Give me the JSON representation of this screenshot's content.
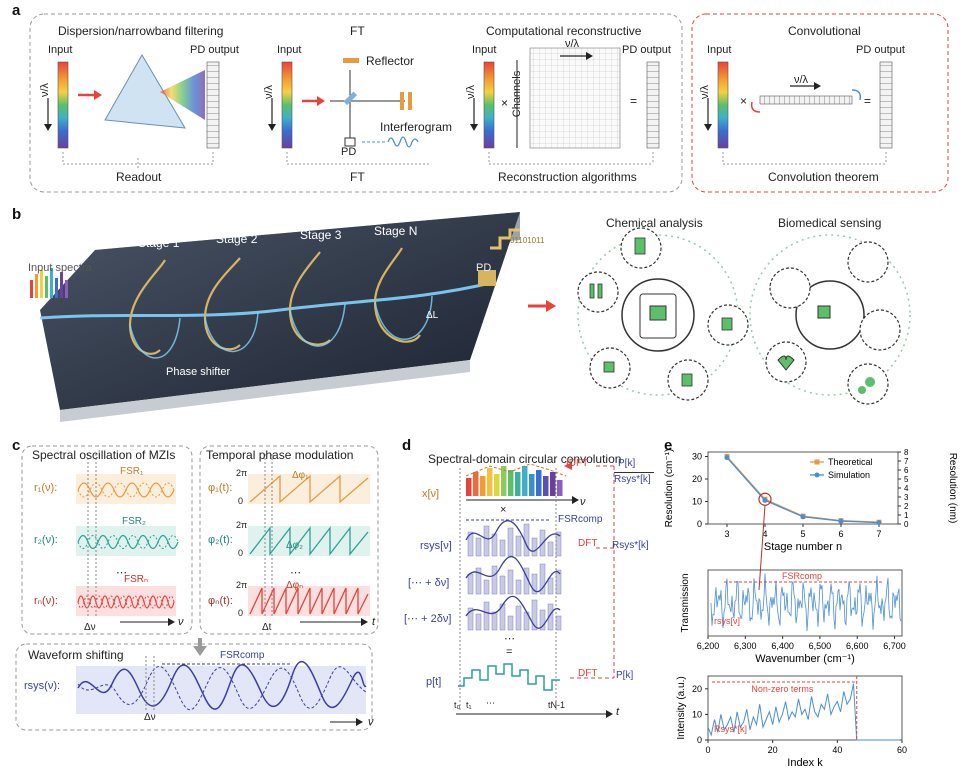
{
  "panels": {
    "a": "a",
    "b": "b",
    "c": "c",
    "d": "d",
    "e": "e"
  },
  "colors": {
    "red": "#e8423a",
    "orange": "#e89a3c",
    "teal": "#2aa198",
    "purple": "#3a3fa0",
    "blue": "#4a8fd6",
    "gold": "#c9a24a"
  },
  "a": {
    "dispersion": {
      "title": "Dispersion/narrowband filtering",
      "input": "Input",
      "output": "PD output",
      "axis": "ν/λ",
      "footer": "Readout"
    },
    "ft": {
      "title": "FT",
      "input": "Input",
      "axis": "ν/λ",
      "reflector": "Reflector",
      "interferogram": "Interferogram",
      "pd": "PD",
      "footer": "FT"
    },
    "comp": {
      "title": "Computational reconstructive",
      "input": "Input",
      "output": "PD output",
      "axis": "ν/λ",
      "top_axis": "ν/λ",
      "channels": "Channels",
      "times": "×",
      "equals": "=",
      "footer": "Reconstruction algorithms"
    },
    "conv": {
      "title": "Convolutional",
      "input": "Input",
      "output": "PD output",
      "axis": "ν/λ",
      "top_axis": "ν/λ",
      "times": "×",
      "equals": "=",
      "footer": "Convolution theorem"
    }
  },
  "b": {
    "stages": [
      "Stage 1",
      "Stage 2",
      "Stage 3",
      "Stage N"
    ],
    "input_spectra": "Input spectra",
    "pd": "PD",
    "phase_shifter": "Phase shifter",
    "delta_l": "ΔL",
    "bits": "01101011",
    "chemical": "Chemical analysis",
    "biomedical": "Biomedical sensing"
  },
  "c": {
    "left_title": "Spectral oscillation of MZIs",
    "right_title": "Temporal phase modulation",
    "fsr1": "FSR₁",
    "fsr2": "FSR₂",
    "fsrn": "FSRₙ",
    "r1": "r₁(ν):",
    "r2": "r₂(ν):",
    "rn": "rₙ(ν):",
    "phi1": "φ₁(t):",
    "phi2": "φ₂(t):",
    "phin": "φₙ(t):",
    "two_pi": "2π",
    "zero": "0",
    "dphi1": "Δφ₁",
    "dphi2": "Δφ₂",
    "dphin": "Δφₙ",
    "dots": "⋯",
    "dv": "Δν",
    "dt": "Δt",
    "nu": "ν",
    "t": "t",
    "waveform": "Waveform shifting",
    "fsr_comp": "FSRcomp",
    "rsys": "rsys(ν):"
  },
  "d": {
    "title": "Spectral-domain circular convolution",
    "x": "x[ν]",
    "times": "×",
    "fsr_comp": "FSRcomp",
    "rsys": "rsys[ν]",
    "shift1": "[⋯ + δν]",
    "shift2": "[⋯ + 2δν]",
    "dots": "⋯",
    "eq": "=",
    "p": "p[t]",
    "idft": "IDFT",
    "dft": "DFT",
    "dft2": "DFT",
    "frac_top": "P[k]",
    "frac_bot": "Rsys*[k]",
    "rsys_k": "Rsys*[k]",
    "pk": "P[k]",
    "t0": "t₀",
    "t1": "t₁",
    "tn": "tN-1",
    "ell": "⋯",
    "nu": "ν",
    "t": "t"
  },
  "chart_data": [
    {
      "type": "line",
      "title": "",
      "xlabel": "Stage number n",
      "ylabel": "Resolution (cm⁻¹)",
      "ylabel_right": "Resolution (nm)",
      "x": [
        3,
        4,
        5,
        6,
        7
      ],
      "xlim": [
        2.5,
        7.5
      ],
      "ylim": [
        0,
        32
      ],
      "yticks": [
        0,
        10,
        20,
        30
      ],
      "yticks_right": [
        0,
        1,
        2,
        3,
        4,
        5,
        6,
        7,
        8
      ],
      "series": [
        {
          "name": "Theoretical",
          "values": [
            30,
            11,
            3.5,
            1.5,
            0.8
          ],
          "color": "#e89a3c"
        },
        {
          "name": "Simulation",
          "values": [
            29.5,
            10.5,
            3.2,
            1.3,
            0.6
          ],
          "color": "#4a8fd6"
        }
      ],
      "legend": "top-right",
      "highlight_x": 4
    },
    {
      "type": "line",
      "xlabel": "Wavenumber (cm⁻¹)",
      "ylabel": "Transmission",
      "xticks": [
        "6,200",
        "6,300",
        "6,400",
        "6,500",
        "6,600",
        "6,700"
      ],
      "xlim": [
        6200,
        6720
      ],
      "annotation": "FSRcomp",
      "series_label": "rsys[ν]",
      "color": "#4a8fd6"
    },
    {
      "type": "line",
      "xlabel": "Index k",
      "ylabel": "Intensity (a.u.)",
      "xlim": [
        0,
        60
      ],
      "ylim": [
        0,
        25
      ],
      "xticks": [
        0,
        20,
        40,
        60
      ],
      "yticks": [
        0,
        10,
        20
      ],
      "annotation": "Non-zero terms",
      "series_label": "Rsys*[k]",
      "nonzero_end": 46,
      "values": [
        5,
        2,
        8,
        3,
        10,
        4,
        6,
        9,
        3,
        11,
        5,
        7,
        12,
        4,
        9,
        6,
        14,
        5,
        8,
        11,
        6,
        13,
        7,
        10,
        15,
        8,
        11,
        9,
        16,
        10,
        12,
        8,
        17,
        11,
        9,
        14,
        12,
        18,
        10,
        13,
        15,
        11,
        19,
        14,
        16,
        22,
        0,
        0,
        0,
        0,
        0,
        0,
        0,
        0,
        0,
        0,
        0,
        0,
        0,
        0
      ],
      "color": "#4a8fd6"
    }
  ]
}
